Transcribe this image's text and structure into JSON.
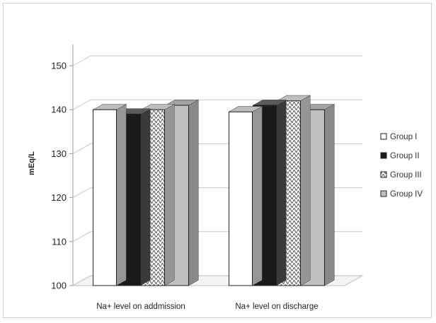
{
  "chart_data": {
    "type": "bar",
    "title": "",
    "xlabel": "",
    "ylabel": "mEq/L",
    "ylim": [
      100,
      150
    ],
    "yticks": [
      100,
      110,
      120,
      130,
      140,
      150
    ],
    "categories": [
      "Na+ level on addmission",
      "Na+ level on discharge"
    ],
    "series": [
      {
        "name": "Group I",
        "values": [
          140,
          139.5
        ],
        "color": "#ffffff",
        "pattern": "none"
      },
      {
        "name": "Group II",
        "values": [
          139,
          141
        ],
        "color": "#1a1a1a",
        "pattern": "none"
      },
      {
        "name": "Group III",
        "values": [
          140,
          142
        ],
        "color": "#ffffff",
        "pattern": "zigzag"
      },
      {
        "name": "Group IV",
        "values": [
          141,
          140
        ],
        "color": "#c0c0c0",
        "pattern": "none"
      }
    ],
    "grid": true,
    "style": "3d",
    "legend_position": "right"
  }
}
